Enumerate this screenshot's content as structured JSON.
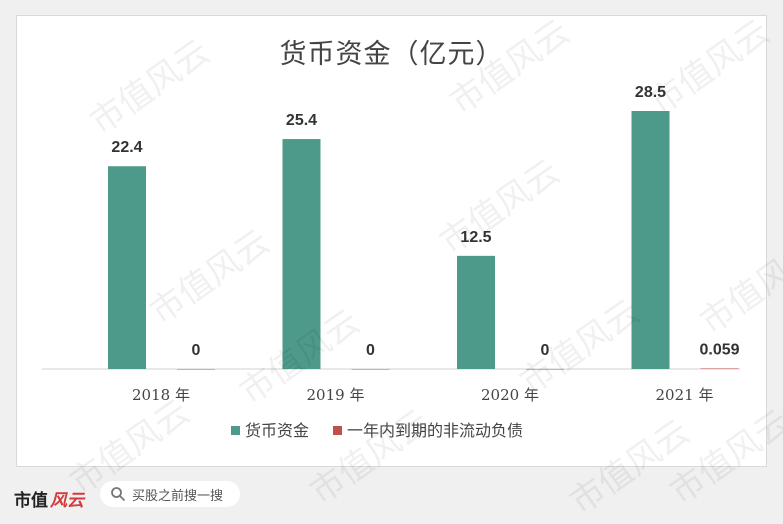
{
  "chart_data": {
    "type": "bar",
    "title": "货币资金（亿元）",
    "categories": [
      "2018 年",
      "2019 年",
      "2020 年",
      "2021 年"
    ],
    "series": [
      {
        "name": "货币资金",
        "values": [
          22.4,
          25.4,
          12.5,
          28.5
        ],
        "labels": [
          "22.4",
          "25.4",
          "12.5",
          "28.5"
        ],
        "color": "#4e9a8a"
      },
      {
        "name": "一年内到期的非流动负债",
        "values": [
          0,
          0,
          0,
          0.059
        ],
        "labels": [
          "0",
          "0",
          "0",
          "0.059"
        ],
        "color": "#c0504d"
      }
    ],
    "ylim": [
      0,
      32
    ],
    "grid": false,
    "legend_position": "bottom"
  },
  "watermark": "市值风云",
  "footer": {
    "brand": "市值",
    "brand_mark": "风云",
    "search_text": "买股之前搜一搜"
  }
}
